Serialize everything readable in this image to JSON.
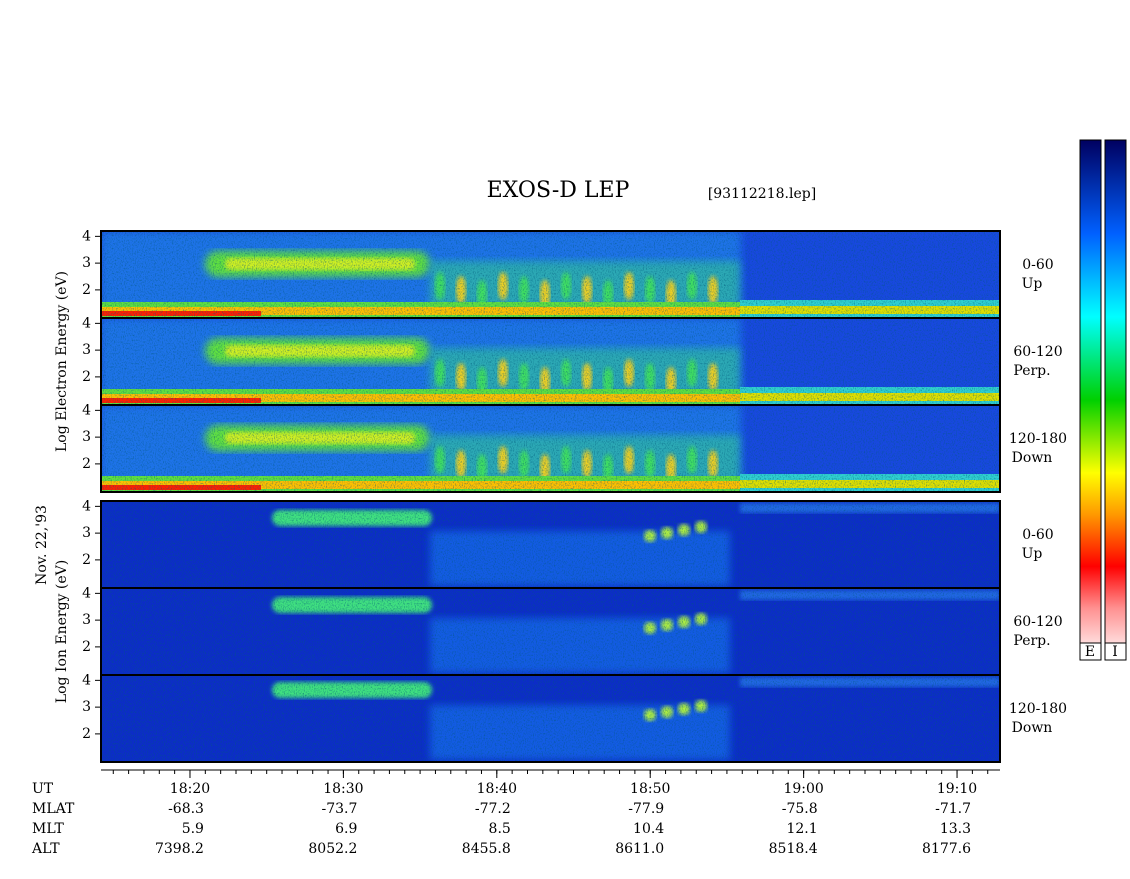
{
  "chart_data": {
    "type": "spectrogram",
    "title": "EXOS-D LEP",
    "subtitle": "[93112218.lep]",
    "date_label": "Nov. 22,'93",
    "xlabel": "UT",
    "xlim": [
      1094.2,
      1152.8
    ],
    "xticks": [
      {
        "value": 1100,
        "label": "18:20"
      },
      {
        "value": 1110,
        "label": "18:30"
      },
      {
        "value": 1120,
        "label": "18:40"
      },
      {
        "value": 1130,
        "label": "18:50"
      },
      {
        "value": 1140,
        "label": "19:00"
      },
      {
        "value": 1150,
        "label": "19:10"
      }
    ],
    "ylim": [
      0.95,
      4.2
    ],
    "yticks": [
      2,
      3,
      4
    ],
    "panel_groups": [
      {
        "ylabel": "Log Electron Energy (eV)",
        "panels": [
          {
            "angle": "0-60",
            "direction": "Up"
          },
          {
            "angle": "60-120",
            "direction": "Perp."
          },
          {
            "angle": "120-180",
            "direction": "Down"
          }
        ]
      },
      {
        "ylabel": "Log Ion Energy (eV)",
        "panels": [
          {
            "angle": "0-60",
            "direction": "Up"
          },
          {
            "angle": "60-120",
            "direction": "Perp."
          },
          {
            "angle": "120-180",
            "direction": "Down"
          }
        ]
      }
    ],
    "orbit": [
      {
        "name": "MLAT",
        "values": [
          -68.3,
          -73.7,
          -77.2,
          -77.9,
          -75.8,
          -71.7
        ]
      },
      {
        "name": "MLT",
        "values": [
          5.9,
          6.9,
          8.5,
          10.4,
          12.1,
          13.3
        ]
      },
      {
        "name": "ALT",
        "values": [
          7398.2,
          8052.2,
          8455.8,
          {
            "value": 8611,
            "label": "8611.0"
          },
          8518.4,
          8177.6
        ]
      }
    ],
    "colorbar_labels": [
      "E",
      "I"
    ]
  }
}
